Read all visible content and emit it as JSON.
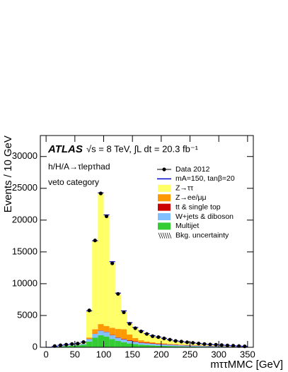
{
  "chart_data": {
    "type": "histogram",
    "title": "ATLAS",
    "subtitle": "√s = 8 TeV, ∫L dt = 20.3 fb⁻¹",
    "annotations": [
      "h/H/A→τlepτhad",
      "veto category"
    ],
    "x_label": "mττMMC [GeV]",
    "y_label": "Events / 10 GeV",
    "bins": [
      0,
      10,
      20,
      30,
      40,
      50,
      60,
      70,
      80,
      90,
      100,
      110,
      120,
      130,
      140,
      150,
      160,
      170,
      180,
      190,
      200,
      210,
      220,
      230,
      240,
      250,
      260,
      270,
      280,
      290,
      300,
      310,
      320,
      330,
      340,
      350
    ],
    "series": [
      {
        "name": "Multijet",
        "color": "#33cc33",
        "values": [
          0,
          50,
          120,
          180,
          250,
          300,
          400,
          900,
          1500,
          1900,
          1700,
          1300,
          1000,
          800,
          600,
          500,
          400,
          350,
          300,
          250,
          220,
          200,
          180,
          150,
          130,
          110,
          100,
          90,
          80,
          70,
          60,
          50,
          40,
          35,
          30
        ]
      },
      {
        "name": "W+jets & diboson",
        "color": "#80c0ff",
        "values": [
          0,
          30,
          60,
          80,
          100,
          120,
          150,
          400,
          600,
          700,
          700,
          600,
          500,
          450,
          400,
          350,
          300,
          280,
          260,
          240,
          220,
          200,
          180,
          160,
          150,
          140,
          120,
          110,
          100,
          90,
          80,
          70,
          60,
          50,
          40
        ]
      },
      {
        "name": "tt & single top",
        "color": "#cc0000",
        "values": [
          0,
          5,
          10,
          10,
          15,
          20,
          20,
          30,
          40,
          50,
          60,
          70,
          80,
          90,
          100,
          100,
          100,
          90,
          90,
          80,
          80,
          70,
          70,
          60,
          60,
          50,
          50,
          40,
          40,
          35,
          30,
          25,
          20,
          20,
          15
        ]
      },
      {
        "name": "Z→ee/μμ",
        "color": "#ff9900",
        "values": [
          0,
          0,
          5,
          10,
          10,
          20,
          30,
          200,
          700,
          1000,
          900,
          1100,
          1300,
          1500,
          900,
          500,
          300,
          200,
          150,
          100,
          80,
          60,
          50,
          40,
          30,
          25,
          20,
          15,
          10,
          10,
          10,
          5,
          5,
          5,
          5
        ]
      },
      {
        "name": "Z→ττ",
        "color": "#ffff66",
        "values": [
          0,
          65,
          105,
          120,
          125,
          140,
          200,
          4170,
          13860,
          20550,
          17340,
          10230,
          5420,
          2660,
          1700,
          1550,
          1400,
          1180,
          1000,
          930,
          800,
          670,
          520,
          490,
          430,
          375,
          310,
          245,
          220,
          195,
          170,
          150,
          125,
          90,
          60
        ]
      }
    ],
    "signal": {
      "name": "mA=150, tanβ=20",
      "color": "#0000cc",
      "values": [
        0,
        5,
        10,
        10,
        10,
        15,
        20,
        30,
        60,
        90,
        120,
        160,
        220,
        230,
        180,
        120,
        80,
        50,
        30,
        20,
        15,
        10,
        10,
        5,
        5,
        5,
        5,
        5,
        0,
        0,
        0,
        0,
        0,
        0,
        0
      ]
    },
    "data": {
      "name": "Data 2012",
      "x": [
        15,
        25,
        35,
        45,
        55,
        65,
        75,
        85,
        95,
        105,
        115,
        125,
        135,
        145,
        155,
        165,
        175,
        185,
        195,
        205,
        215,
        225,
        235,
        245,
        255,
        265,
        275,
        285,
        295,
        305,
        315,
        325,
        335,
        345
      ],
      "values": [
        200,
        320,
        420,
        520,
        580,
        820,
        5800,
        16800,
        24200,
        20600,
        13200,
        8400,
        5500,
        3700,
        3000,
        2500,
        2100,
        1750,
        1600,
        1400,
        1200,
        1000,
        900,
        800,
        700,
        600,
        520,
        450,
        400,
        350,
        300,
        250,
        200,
        150
      ]
    },
    "uncertainty_label": "Bkg. uncertainty",
    "xlim": [
      -10,
      360
    ],
    "ylim": [
      0,
      33300
    ],
    "xticks": [
      0,
      50,
      100,
      150,
      200,
      250,
      300,
      350
    ],
    "yticks": [
      0,
      5000,
      10000,
      15000,
      20000,
      25000,
      30000
    ],
    "grid": false
  }
}
